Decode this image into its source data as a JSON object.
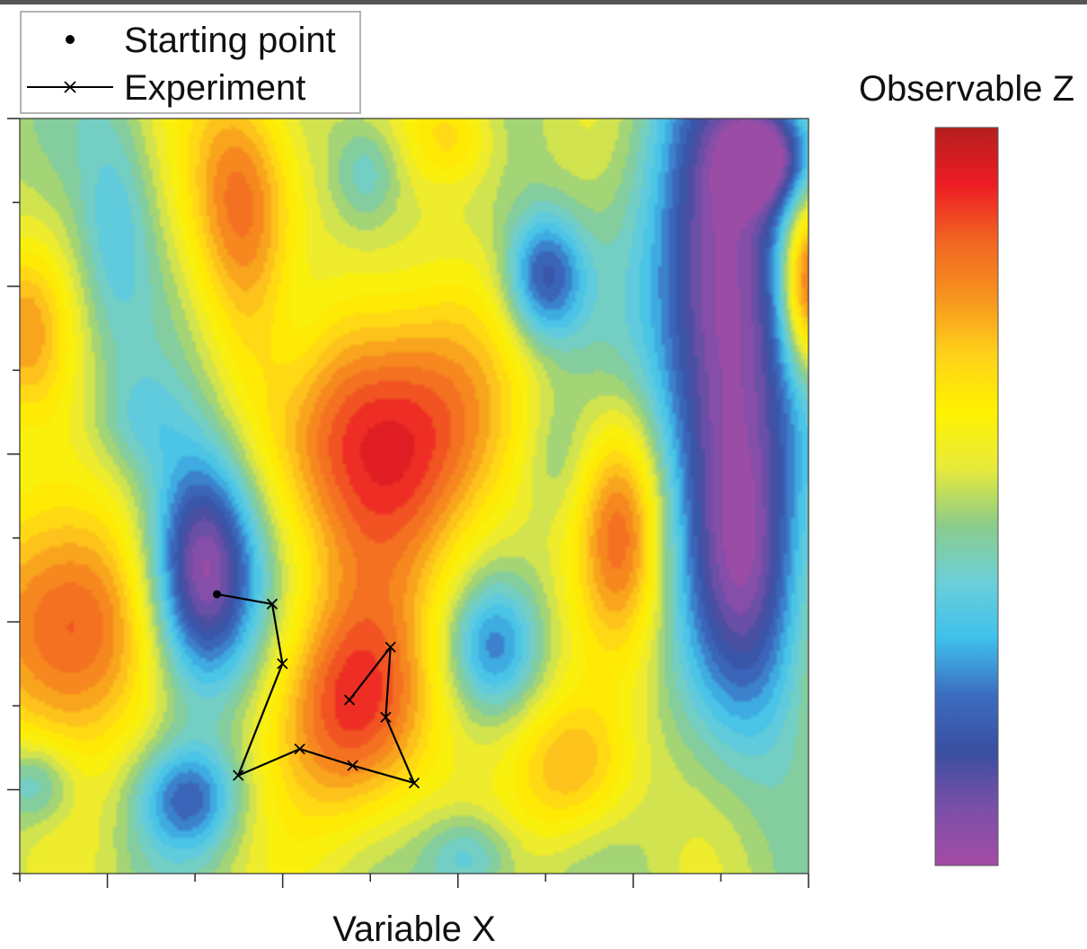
{
  "chart_data": {
    "type": "heatmap",
    "title": "",
    "xlabel": "Variable X",
    "ylabel": "",
    "colorbar_label": "Observable Z",
    "colorbar_colors": [
      "#a64ca6",
      "#7a4fa8",
      "#3a4fa0",
      "#3b6cc0",
      "#3fc0ec",
      "#6bcfd8",
      "#8ccc8a",
      "#e8ea3a",
      "#fff200",
      "#ffd21a",
      "#f7941e",
      "#f26522",
      "#ed1c24",
      "#b41f1f"
    ],
    "legend": {
      "position": "top-left",
      "entries": [
        {
          "name": "Starting point",
          "marker": "dot"
        },
        {
          "name": "Experiment",
          "marker": "line-x"
        }
      ]
    },
    "x_ticks_major": 4,
    "x_ticks_minor": 9,
    "y_ticks_major": 4,
    "y_ticks_minor": 9,
    "grid": false,
    "starting_point": {
      "x": 0.25,
      "y": 0.37
    },
    "experiment_path": [
      {
        "x": 0.25,
        "y": 0.37
      },
      {
        "x": 0.32,
        "y": 0.357
      },
      {
        "x": 0.333,
        "y": 0.278
      },
      {
        "x": 0.277,
        "y": 0.13
      },
      {
        "x": 0.355,
        "y": 0.165
      },
      {
        "x": 0.422,
        "y": 0.143
      },
      {
        "x": 0.5,
        "y": 0.12
      },
      {
        "x": 0.464,
        "y": 0.207
      },
      {
        "x": 0.47,
        "y": 0.3
      },
      {
        "x": 0.418,
        "y": 0.23
      }
    ],
    "field_blobs": [
      {
        "x": 0.89,
        "y": 0.75,
        "sx": 0.065,
        "sy": 0.24,
        "a": -1.7
      },
      {
        "x": 0.93,
        "y": 0.38,
        "sx": 0.05,
        "sy": 0.15,
        "a": -1.0
      },
      {
        "x": 0.95,
        "y": 0.95,
        "sx": 0.04,
        "sy": 0.05,
        "a": -1.2
      },
      {
        "x": 1.0,
        "y": 0.78,
        "sx": 0.025,
        "sy": 0.08,
        "a": 1.6
      },
      {
        "x": 0.23,
        "y": 0.4,
        "sx": 0.05,
        "sy": 0.11,
        "a": -1.8
      },
      {
        "x": 0.465,
        "y": 0.58,
        "sx": 0.1,
        "sy": 0.13,
        "a": 1.55
      },
      {
        "x": 0.42,
        "y": 0.22,
        "sx": 0.075,
        "sy": 0.11,
        "a": 1.3
      },
      {
        "x": 0.06,
        "y": 0.33,
        "sx": 0.08,
        "sy": 0.12,
        "a": 1.35
      },
      {
        "x": 0.0,
        "y": 0.72,
        "sx": 0.04,
        "sy": 0.08,
        "a": 0.8
      },
      {
        "x": 0.28,
        "y": 0.9,
        "sx": 0.05,
        "sy": 0.12,
        "a": 1.1
      },
      {
        "x": 0.765,
        "y": 0.46,
        "sx": 0.04,
        "sy": 0.11,
        "a": 1.1
      },
      {
        "x": 0.7,
        "y": 0.14,
        "sx": 0.055,
        "sy": 0.07,
        "a": 0.8
      },
      {
        "x": 0.55,
        "y": 0.98,
        "sx": 0.04,
        "sy": 0.05,
        "a": 0.6
      },
      {
        "x": 0.665,
        "y": 0.79,
        "sx": 0.035,
        "sy": 0.06,
        "a": -1.1
      },
      {
        "x": 0.6,
        "y": 0.3,
        "sx": 0.04,
        "sy": 0.06,
        "a": -0.75
      },
      {
        "x": 0.215,
        "y": 0.1,
        "sx": 0.045,
        "sy": 0.05,
        "a": -0.9
      },
      {
        "x": 0.02,
        "y": 0.12,
        "sx": 0.035,
        "sy": 0.04,
        "a": -0.6
      },
      {
        "x": 0.12,
        "y": 0.85,
        "sx": 0.035,
        "sy": 0.12,
        "a": -0.5
      },
      {
        "x": 0.44,
        "y": 0.93,
        "sx": 0.03,
        "sy": 0.05,
        "a": -0.45
      },
      {
        "x": 0.35,
        "y": 0.72,
        "sx": 0.035,
        "sy": 0.09,
        "a": -0.35
      },
      {
        "x": 0.57,
        "y": 0.02,
        "sx": 0.04,
        "sy": 0.04,
        "a": -0.6
      },
      {
        "x": 0.15,
        "y": 0.6,
        "sx": 0.04,
        "sy": 0.05,
        "a": -0.3
      },
      {
        "x": 0.68,
        "y": 0.55,
        "sx": 0.03,
        "sy": 0.06,
        "a": -0.25
      }
    ]
  }
}
